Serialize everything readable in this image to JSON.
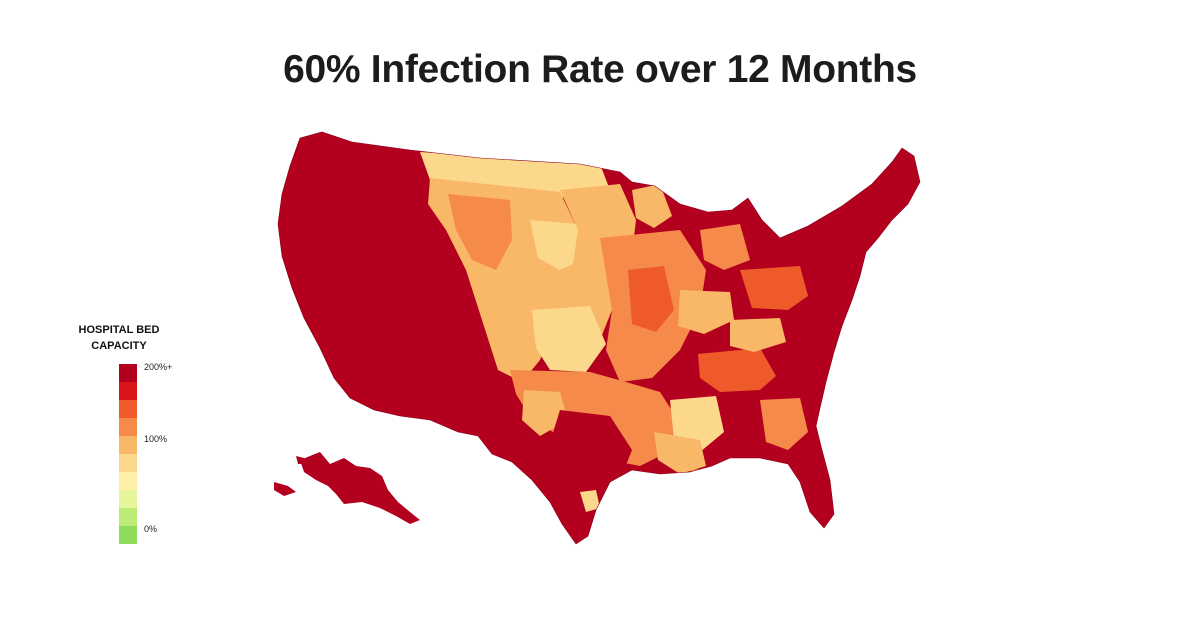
{
  "title": "60% Infection Rate over 12 Months",
  "legend": {
    "title_line1": "HOSPITAL BED",
    "title_line2": "CAPACITY",
    "colors": [
      "#b3001f",
      "#d9161b",
      "#ef5a2a",
      "#f58a4b",
      "#f8b868",
      "#fbd88c",
      "#fdf0a6",
      "#e4f59a",
      "#bdeb78",
      "#8fdc5a"
    ],
    "ticks": [
      {
        "label": "200%+",
        "index": 0
      },
      {
        "label": "100%",
        "index": 4
      },
      {
        "label": "0%",
        "index": 9
      }
    ]
  },
  "map": {
    "region": "United States",
    "fill_colors": {
      "very_high": "#b3001f",
      "high": "#d9161b",
      "elevated": "#ef5a2a",
      "moderate": "#f58a4b",
      "near_capacity": "#f8b868",
      "at_capacity": "#fbd88c",
      "below_capacity": "#fdf0a6"
    }
  }
}
